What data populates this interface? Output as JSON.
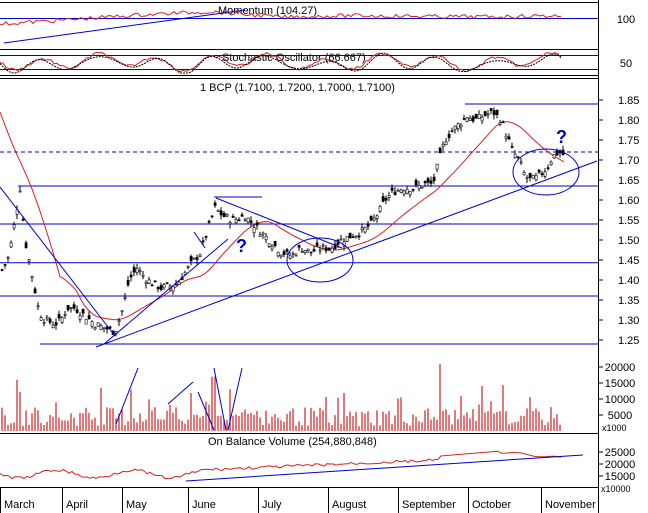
{
  "chart_data": [
    {
      "type": "line",
      "panel": "momentum",
      "title": "Momentum (104.27)",
      "y_ticks": [
        100
      ],
      "series": [
        {
          "color": "#d22020",
          "x": [
            "March",
            "April",
            "May",
            "June",
            "July",
            "August",
            "September",
            "October",
            "November"
          ],
          "values": [
            98.5,
            99.6,
            100.8,
            101.6,
            100.2,
            100.6,
            100.4,
            100.3,
            100.6
          ]
        }
      ]
    },
    {
      "type": "line",
      "panel": "stochastic",
      "title": "Stochastic Oscillator (66.667)",
      "y_ticks": [
        50
      ],
      "series": [
        {
          "color": "#d22020"
        },
        {
          "color": "#000000"
        }
      ]
    },
    {
      "type": "line",
      "panel": "price",
      "title": "1 BCP (1.7100, 1.7200, 1.7000, 1.7100)",
      "y_ticks": [
        "1.85",
        "1.80",
        "1.75",
        "1.70",
        "1.65",
        "1.60",
        "1.55",
        "1.50",
        "1.45",
        "1.40",
        "1.35",
        "1.30",
        "1.25"
      ],
      "ylim": [
        1.22,
        1.87
      ],
      "ohlc_last": {
        "open": 1.71,
        "high": 1.72,
        "low": 1.7,
        "close": 1.71
      },
      "horizontal_levels": [
        1.84,
        1.72,
        1.635,
        1.54,
        1.443,
        1.36,
        1.24
      ],
      "annotations": [
        "?",
        "?"
      ],
      "x_months": [
        "March",
        "April",
        "May",
        "June",
        "July",
        "August",
        "September",
        "October",
        "November"
      ],
      "close_by_month": [
        {
          "month": "March",
          "close": 1.42
        },
        {
          "month": "April",
          "close": 1.27
        },
        {
          "month": "May",
          "close": 1.4
        },
        {
          "month": "June",
          "close": 1.55
        },
        {
          "month": "July",
          "close": 1.47
        },
        {
          "month": "August",
          "close": 1.5
        },
        {
          "month": "September",
          "close": 1.64
        },
        {
          "month": "October",
          "close": 1.78
        },
        {
          "month": "November",
          "close": 1.71
        }
      ],
      "moving_average_color": "#d22020"
    },
    {
      "type": "bar",
      "panel": "volume",
      "y_ticks": [
        "20000",
        "15000",
        "10000",
        "5000"
      ],
      "y_multiplier": "x1000",
      "bar_color": "#cc2020"
    },
    {
      "type": "line",
      "panel": "obv",
      "title": "On Balance Volume (254,880,848)",
      "y_ticks": [
        "25000",
        "20000",
        "15000"
      ],
      "y_multiplier": "x10000",
      "series": [
        {
          "color": "#d22020"
        }
      ]
    }
  ],
  "x_axis": {
    "months": [
      "March",
      "April",
      "May",
      "June",
      "July",
      "August",
      "September",
      "October",
      "November"
    ]
  }
}
